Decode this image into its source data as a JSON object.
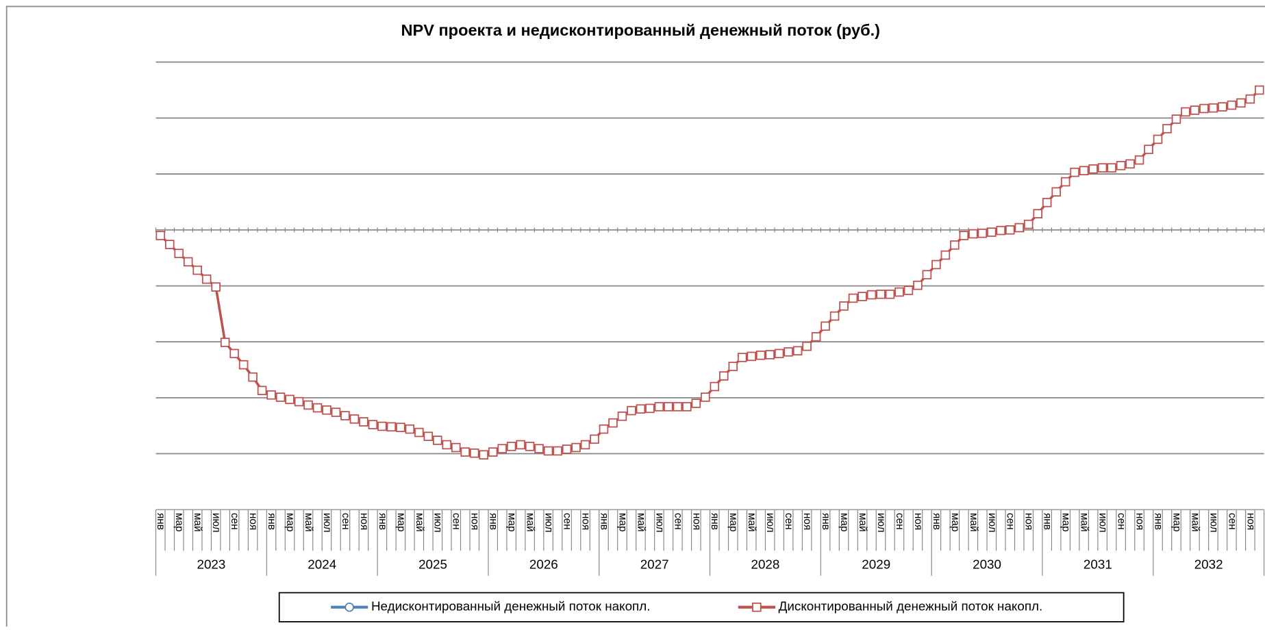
{
  "chart_data": {
    "type": "line",
    "title": "NPV проекта и недисконтированный денежный поток (руб.)",
    "categories": [
      "янв",
      null,
      "мар",
      null,
      "май",
      null,
      "июл",
      null,
      "сен",
      null,
      "ноя",
      null,
      "янв",
      null,
      "мар",
      null,
      "май",
      null,
      "июл",
      null,
      "сен",
      null,
      "ноя",
      null,
      "янв",
      null,
      "мар",
      null,
      "май",
      null,
      "июл",
      null,
      "сен",
      null,
      "ноя",
      null,
      "янв",
      null,
      "мар",
      null,
      "май",
      null,
      "июл",
      null,
      "сен",
      null,
      "ноя",
      null,
      "янв",
      null,
      "мар",
      null,
      "май",
      null,
      "июл",
      null,
      "сен",
      null,
      "ноя",
      null,
      "янв",
      null,
      "мар",
      null,
      "май",
      null,
      "июл",
      null,
      "сен",
      null,
      "ноя",
      null,
      "янв",
      null,
      "мар",
      null,
      "май",
      null,
      "июл",
      null,
      "сен",
      null,
      "ноя",
      null,
      "янв",
      null,
      "мар",
      null,
      "май",
      null,
      "июл",
      null,
      "сен",
      null,
      "ноя",
      null,
      "янв",
      null,
      "мар",
      null,
      "май",
      null,
      "июл",
      null,
      "сен",
      null,
      "ноя",
      null,
      "янв",
      null,
      "мар",
      null,
      "май",
      null,
      "июл",
      null,
      "сен",
      null,
      "ноя",
      null
    ],
    "years": [
      "2023",
      "2024",
      "2025",
      "2026",
      "2027",
      "2028",
      "2029",
      "2030",
      "2031",
      "2032"
    ],
    "series": [
      {
        "name": "Недисконтированный денежный поток накопл.",
        "color": "#4f81bd",
        "marker": "circle"
      },
      {
        "name": "Дисконтированный денежный поток накопл.",
        "color": "#c0504d",
        "marker": "square",
        "values": [
          -0.1,
          -0.26,
          -0.42,
          -0.57,
          -0.72,
          -0.88,
          -1.02,
          -2.01,
          -2.21,
          -2.41,
          -2.63,
          -2.87,
          -2.95,
          -2.99,
          -3.03,
          -3.07,
          -3.13,
          -3.18,
          -3.22,
          -3.26,
          -3.32,
          -3.38,
          -3.43,
          -3.48,
          -3.51,
          -3.52,
          -3.53,
          -3.56,
          -3.62,
          -3.69,
          -3.76,
          -3.84,
          -3.89,
          -3.97,
          -3.99,
          -4.02,
          -3.97,
          -3.91,
          -3.87,
          -3.84,
          -3.87,
          -3.91,
          -3.95,
          -3.95,
          -3.92,
          -3.89,
          -3.84,
          -3.74,
          -3.56,
          -3.45,
          -3.33,
          -3.23,
          -3.2,
          -3.19,
          -3.16,
          -3.16,
          -3.16,
          -3.16,
          -3.1,
          -2.99,
          -2.8,
          -2.61,
          -2.44,
          -2.28,
          -2.26,
          -2.24,
          -2.23,
          -2.21,
          -2.18,
          -2.16,
          -2.08,
          -1.91,
          -1.72,
          -1.54,
          -1.36,
          -1.22,
          -1.19,
          -1.16,
          -1.15,
          -1.15,
          -1.11,
          -1.08,
          -0.99,
          -0.8,
          -0.62,
          -0.45,
          -0.27,
          -0.1,
          -0.07,
          -0.06,
          -0.04,
          -0.01,
          0,
          0.04,
          0.1,
          0.29,
          0.49,
          0.68,
          0.86,
          1.03,
          1.06,
          1.09,
          1.11,
          1.11,
          1.15,
          1.18,
          1.25,
          1.44,
          1.62,
          1.81,
          1.98,
          2.11,
          2.14,
          2.17,
          2.18,
          2.2,
          2.23,
          2.27,
          2.34,
          2.5
        ]
      }
    ],
    "ylim": [
      -5,
      3
    ],
    "yticks": [
      -4,
      -3,
      -2,
      -1,
      0,
      1,
      2,
      3
    ],
    "grid": true,
    "legend": "bottom"
  }
}
